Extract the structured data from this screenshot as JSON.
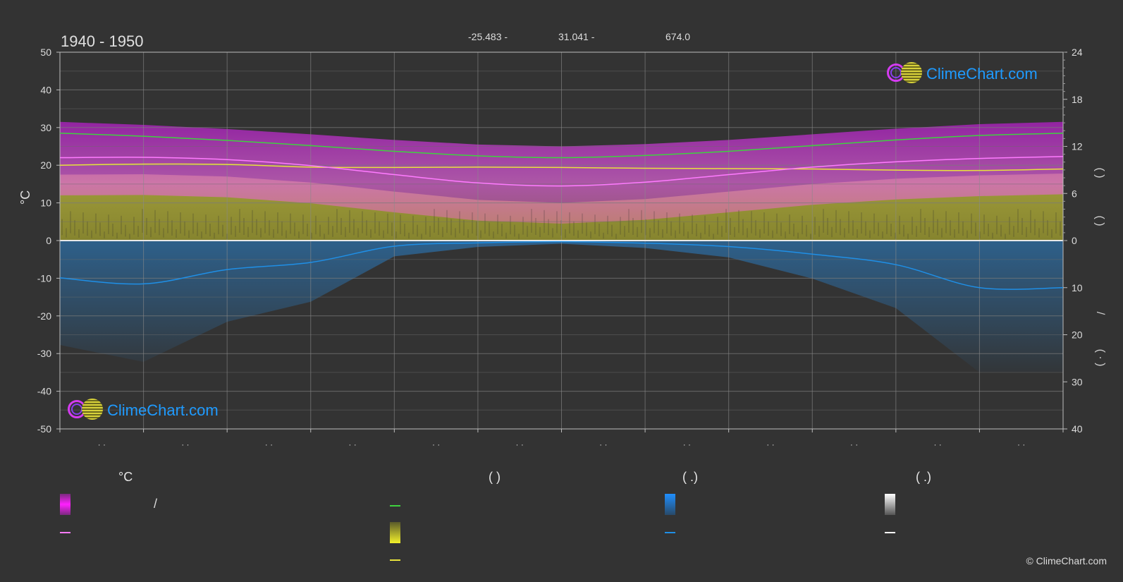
{
  "header": {
    "title": "1940 - 1950",
    "coords": [
      "-25.483 -",
      "31.041 -",
      "674.0"
    ]
  },
  "axes": {
    "left_unit": "°C",
    "right_parens": [
      "(   )",
      "(   )",
      "/",
      "(  ·  )"
    ]
  },
  "brand": {
    "name": "ClimeChart.com",
    "copyright": "© ClimeChart.com"
  },
  "legend": {
    "col1": {
      "head": "°C",
      "slash": "/"
    },
    "col2": {
      "head": "(           )"
    },
    "col3": {
      "head": "(    .)"
    },
    "col4": {
      "head": "(    .)"
    }
  },
  "chart_data": {
    "type": "line",
    "x_label_mark": "· ·",
    "x_count": 12,
    "y_left": {
      "min": -50,
      "max": 50,
      "ticks": [
        50,
        40,
        30,
        20,
        10,
        0,
        -10,
        -20,
        -30,
        -40,
        -50
      ]
    },
    "y_right_top": {
      "min": 0,
      "max": 24,
      "ticks": [
        "24",
        "18",
        "12",
        "6",
        "0"
      ]
    },
    "y_right_bottom": {
      "min": 0,
      "max": 40,
      "ticks": [
        "10",
        "20",
        "30",
        "40"
      ]
    },
    "colors": {
      "daylight": "#3fd23f",
      "sunshine": "#e8e23c",
      "max_temp": "#ff7bff",
      "precip": "#1f8fe6",
      "temp_band": "#e066d8",
      "sun_band": "#a7a33a",
      "precip_band": "#2d6fa6"
    },
    "series": [
      {
        "values": [
          28.5,
          27.7,
          26.6,
          25.2,
          23.7,
          22.5,
          22.0,
          22.6,
          23.7,
          25.2,
          26.7,
          27.9,
          28.5
        ]
      },
      {
        "values": [
          20.0,
          20.3,
          20.2,
          19.5,
          19.4,
          19.5,
          19.4,
          19.2,
          19.1,
          19.0,
          18.7,
          18.6,
          19.0
        ]
      },
      {
        "values": [
          22.0,
          22.1,
          21.5,
          19.9,
          17.5,
          15.3,
          14.5,
          15.5,
          17.5,
          19.5,
          20.9,
          21.8,
          22.3
        ]
      },
      {
        "values": [
          -9.9,
          -11.5,
          -7.7,
          -5.8,
          -1.5,
          -0.6,
          -0.3,
          -0.7,
          -1.6,
          -3.6,
          -6.4,
          -12.5,
          -12.5
        ]
      }
    ]
  }
}
